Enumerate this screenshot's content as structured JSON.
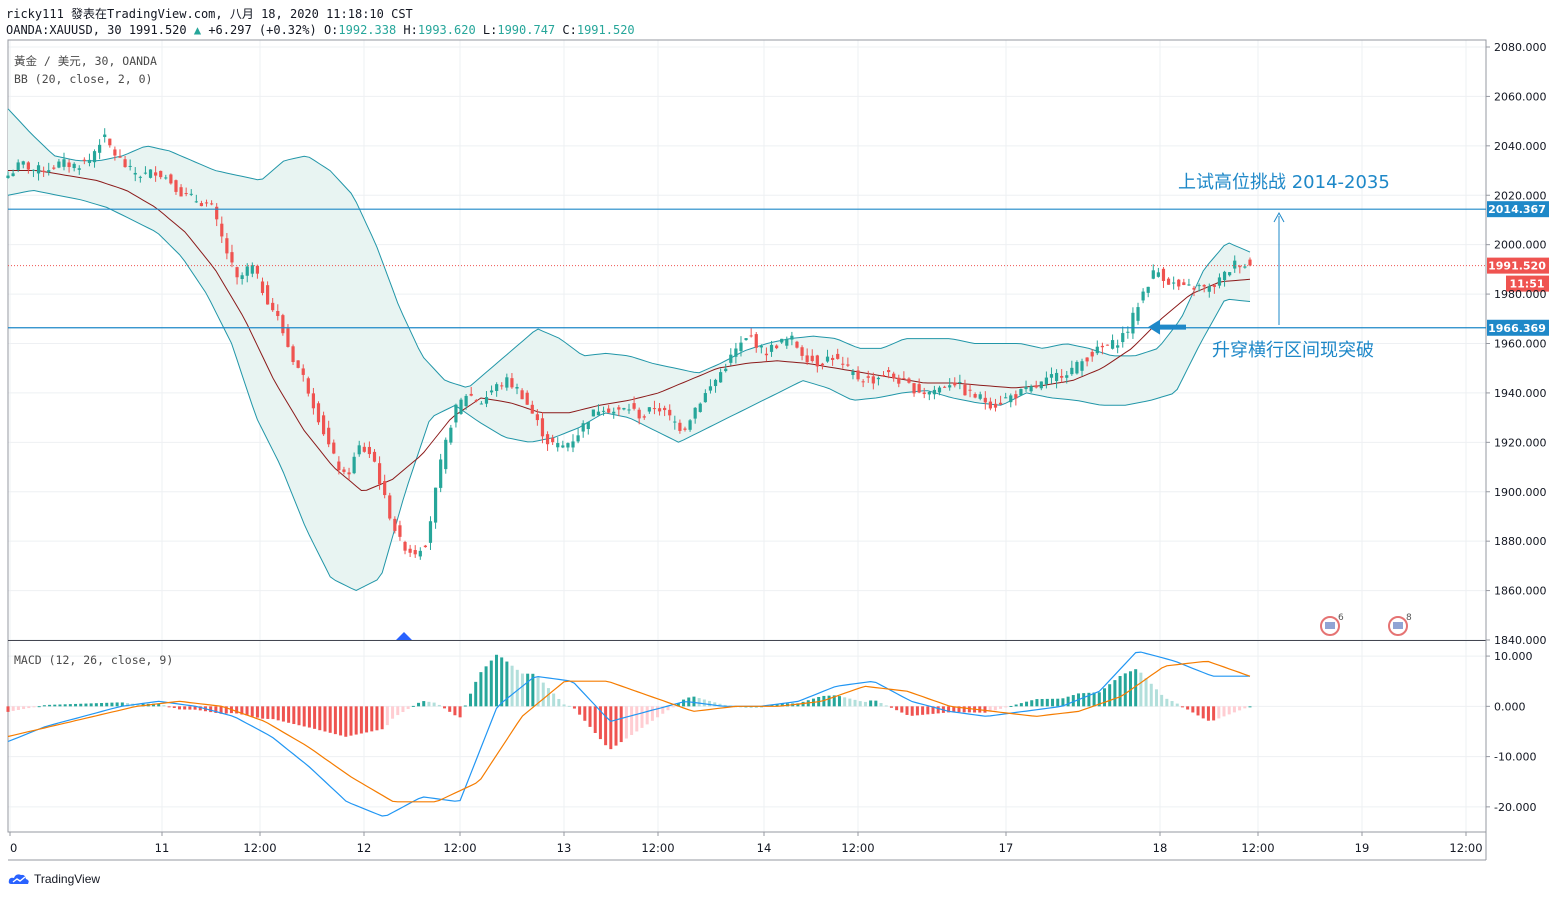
{
  "header": {
    "line1": "ricky111 發表在TradingView.com, 八月 18, 2020 11:18:10 CST",
    "symbol": "OANDA:XAUUSD, 30",
    "last": "1991.520",
    "change": "+6.297 (+0.32%)",
    "o_label": "O:",
    "o": "1992.338",
    "h_label": "H:",
    "h": "1993.620",
    "l_label": "L:",
    "l": "1990.747",
    "c_label": "C:",
    "c": "1991.520"
  },
  "legend": {
    "title": "黃金 / 美元, 30, OANDA",
    "bb": "BB (20, close, 2, 0)",
    "macd": "MACD (12, 26, close, 9)"
  },
  "annotations": {
    "top": "上试高位挑战 2014-2035",
    "mid": "升穿横行区间现突破"
  },
  "branding": {
    "name": "TradingView"
  },
  "colors": {
    "up": "#26a69a",
    "down": "#ef5350",
    "bb_line": "#2196a8",
    "bb_fill": "#e8f4f2",
    "basis": "#8b1a1a",
    "hline": "#1e88c8",
    "macd": "#2196f3",
    "signal": "#f57c00",
    "price_badge": "#ef5350"
  },
  "chart_data": [
    {
      "type": "candlestick",
      "title": "黃金 / 美元, 30, OANDA",
      "ylim": [
        1840,
        2080
      ],
      "y_ticks": [
        "2080.000",
        "2060.000",
        "2040.000",
        "2020.000",
        "2000.000",
        "1980.000",
        "1960.000",
        "1940.000",
        "1920.000",
        "1900.000",
        "1880.000",
        "1860.000",
        "1840.000"
      ],
      "x_ticks": [
        "0",
        "11",
        "12:00",
        "12",
        "12:00",
        "13",
        "12:00",
        "14",
        "12:00",
        "17",
        "18",
        "12:00",
        "19",
        "12:00"
      ],
      "horizontal_levels": [
        {
          "value": 2014.367,
          "label": "2014.367"
        },
        {
          "value": 1966.369,
          "label": "1966.369"
        }
      ],
      "last_price": {
        "value": 1991.52,
        "label": "1991.520",
        "countdown": "11:51"
      },
      "close_path": [
        2028,
        2033,
        2030,
        2031,
        2033,
        2032,
        2034,
        2044,
        2036,
        2030,
        2028,
        2030,
        2026,
        2020,
        2018,
        2016,
        2000,
        1985,
        1992,
        1980,
        1970,
        1955,
        1945,
        1930,
        1915,
        1905,
        1918,
        1915,
        1895,
        1880,
        1875,
        1880,
        1910,
        1932,
        1940,
        1936,
        1942,
        1945,
        1940,
        1930,
        1920,
        1918,
        1922,
        1930,
        1935,
        1932,
        1934,
        1930,
        1935,
        1930,
        1925,
        1935,
        1942,
        1950,
        1958,
        1963,
        1956,
        1960,
        1962,
        1955,
        1952,
        1955,
        1950,
        1946,
        1945,
        1948,
        1945,
        1942,
        1940,
        1942,
        1945,
        1940,
        1938,
        1935,
        1938,
        1940,
        1942,
        1945,
        1948,
        1950,
        1955,
        1958,
        1960,
        1966,
        1980,
        1990,
        1985,
        1982,
        1983,
        1982,
        1987,
        1993,
        1991.5
      ],
      "bb_upper_path": [
        2055,
        2045,
        2036,
        2034,
        2034,
        2036,
        2040,
        2038,
        2034,
        2030,
        2028,
        2026,
        2034,
        2036,
        2030,
        2020,
        2000,
        1975,
        1955,
        1945,
        1942,
        1950,
        1958,
        1966,
        1962,
        1955,
        1956,
        1955,
        1952,
        1950,
        1948,
        1952,
        1957,
        1960,
        1962,
        1963,
        1962,
        1958,
        1958,
        1962,
        1962,
        1962,
        1960,
        1960,
        1960,
        1958,
        1960,
        1958,
        1955,
        1955,
        1958,
        1970,
        1990,
        2001,
        1997
      ],
      "bb_lower_path": [
        2020,
        2022,
        2020,
        2018,
        2015,
        2010,
        2005,
        1995,
        1980,
        1960,
        1930,
        1910,
        1885,
        1865,
        1860,
        1865,
        1900,
        1930,
        1935,
        1928,
        1922,
        1920,
        1922,
        1926,
        1932,
        1930,
        1925,
        1920,
        1925,
        1930,
        1935,
        1940,
        1945,
        1942,
        1937,
        1938,
        1940,
        1941,
        1938,
        1936,
        1935,
        1940,
        1938,
        1937,
        1935,
        1935,
        1937,
        1940,
        1960,
        1978,
        1977
      ],
      "bb_basis_path": [
        2030,
        2030,
        2028,
        2026,
        2022,
        2015,
        2005,
        1990,
        1970,
        1945,
        1925,
        1910,
        1900,
        1905,
        1915,
        1930,
        1938,
        1936,
        1932,
        1932,
        1935,
        1937,
        1940,
        1945,
        1950,
        1952,
        1953,
        1952,
        1950,
        1948,
        1946,
        1944,
        1944,
        1943,
        1942,
        1943,
        1945,
        1950,
        1958,
        1970,
        1980,
        1985,
        1986
      ]
    },
    {
      "type": "macd",
      "title": "MACD (12, 26, close, 9)",
      "ylim": [
        -25,
        13
      ],
      "y_ticks": [
        "10.000",
        "0.000",
        "-10.000",
        "-20.000"
      ],
      "macd_path": [
        -7,
        -4,
        -2,
        0,
        1,
        0,
        -2,
        -6,
        -12,
        -19,
        -22,
        -18,
        -19,
        0,
        6,
        5,
        -3,
        -1,
        1,
        0,
        0,
        1,
        4,
        5,
        1,
        -1,
        -2,
        -1,
        0,
        3,
        11,
        9,
        6,
        6
      ],
      "signal_path": [
        -6,
        -4,
        -2,
        0,
        1,
        0,
        -3,
        -8,
        -14,
        -19,
        -19,
        -15,
        -2,
        5,
        5,
        2,
        -1,
        0,
        0,
        1,
        4,
        3,
        0,
        -1,
        -2,
        -1,
        2,
        8,
        9,
        6
      ]
    }
  ]
}
